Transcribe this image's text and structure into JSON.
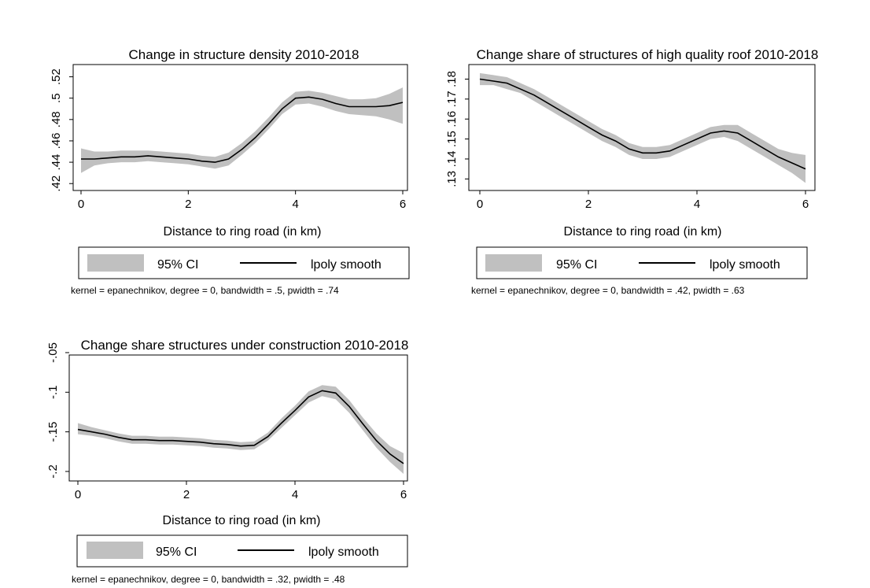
{
  "legend": {
    "ci_label": "95% CI",
    "line_label": "lpoly smooth",
    "ci_color": "#c0c0c0",
    "line_color": "#000000"
  },
  "chart_data": [
    {
      "type": "line",
      "title": "Change in structure density 2010-2018",
      "xlabel": "Distance to ring road (in km)",
      "ylabel": "",
      "xlim": [
        0,
        6
      ],
      "ylim": [
        0.415,
        0.53
      ],
      "xticks": [
        0,
        2,
        4,
        6
      ],
      "xtick_labels": [
        "0",
        "2",
        "4",
        "6"
      ],
      "yticks": [
        0.42,
        0.44,
        0.46,
        0.48,
        0.5,
        0.52
      ],
      "ytick_labels": [
        ".42",
        ".44",
        ".46",
        ".48",
        ".5",
        ".52"
      ],
      "note": "kernel = epanechnikov, degree = 0, bandwidth = .5, pwidth = .74",
      "series": [
        {
          "name": "lpoly smooth",
          "x": [
            0,
            0.25,
            0.5,
            0.75,
            1.0,
            1.25,
            1.5,
            1.75,
            2.0,
            2.25,
            2.5,
            2.75,
            3.0,
            3.25,
            3.5,
            3.75,
            4.0,
            4.25,
            4.5,
            4.75,
            5.0,
            5.25,
            5.5,
            5.75,
            6.0
          ],
          "y": [
            0.443,
            0.443,
            0.444,
            0.445,
            0.445,
            0.446,
            0.445,
            0.444,
            0.443,
            0.441,
            0.44,
            0.443,
            0.452,
            0.463,
            0.476,
            0.49,
            0.5,
            0.501,
            0.499,
            0.495,
            0.492,
            0.492,
            0.492,
            0.493,
            0.496
          ],
          "ci_lo": [
            0.43,
            0.437,
            0.439,
            0.44,
            0.44,
            0.441,
            0.44,
            0.439,
            0.438,
            0.436,
            0.434,
            0.437,
            0.447,
            0.458,
            0.471,
            0.485,
            0.494,
            0.495,
            0.492,
            0.488,
            0.485,
            0.484,
            0.483,
            0.48,
            0.476
          ],
          "ci_hi": [
            0.453,
            0.45,
            0.45,
            0.451,
            0.451,
            0.451,
            0.45,
            0.449,
            0.448,
            0.446,
            0.445,
            0.449,
            0.458,
            0.469,
            0.482,
            0.496,
            0.506,
            0.507,
            0.505,
            0.502,
            0.499,
            0.499,
            0.5,
            0.504,
            0.51
          ]
        }
      ]
    },
    {
      "type": "line",
      "title": "Change share of structures of high quality roof 2010-2018",
      "xlabel": "Distance to ring road (in km)",
      "ylabel": "",
      "xlim": [
        0,
        6
      ],
      "ylim": [
        0.125,
        0.1865
      ],
      "xticks": [
        0,
        2,
        4,
        6
      ],
      "xtick_labels": [
        "0",
        "2",
        "4",
        "6"
      ],
      "yticks": [
        0.13,
        0.14,
        0.15,
        0.16,
        0.17,
        0.18
      ],
      "ytick_labels": [
        ".13",
        ".14",
        ".15",
        ".16",
        ".17",
        ".18"
      ],
      "note": "kernel = epanechnikov, degree = 0, bandwidth = .42, pwidth = .63",
      "series": [
        {
          "name": "lpoly smooth",
          "x": [
            0,
            0.25,
            0.5,
            0.75,
            1.0,
            1.25,
            1.5,
            1.75,
            2.0,
            2.25,
            2.5,
            2.75,
            3.0,
            3.25,
            3.5,
            3.75,
            4.0,
            4.25,
            4.5,
            4.75,
            5.0,
            5.25,
            5.5,
            5.75,
            6.0
          ],
          "y": [
            0.18,
            0.179,
            0.178,
            0.175,
            0.172,
            0.168,
            0.164,
            0.16,
            0.156,
            0.152,
            0.149,
            0.145,
            0.143,
            0.143,
            0.144,
            0.147,
            0.15,
            0.153,
            0.154,
            0.153,
            0.149,
            0.145,
            0.141,
            0.138,
            0.135
          ],
          "ci_lo": [
            0.177,
            0.177,
            0.175,
            0.173,
            0.169,
            0.165,
            0.161,
            0.157,
            0.153,
            0.149,
            0.146,
            0.142,
            0.14,
            0.14,
            0.141,
            0.144,
            0.147,
            0.15,
            0.151,
            0.149,
            0.145,
            0.141,
            0.137,
            0.133,
            0.128
          ],
          "ci_hi": [
            0.183,
            0.182,
            0.181,
            0.178,
            0.175,
            0.171,
            0.167,
            0.163,
            0.159,
            0.155,
            0.152,
            0.148,
            0.146,
            0.146,
            0.147,
            0.15,
            0.153,
            0.156,
            0.157,
            0.157,
            0.153,
            0.149,
            0.145,
            0.143,
            0.142
          ]
        }
      ]
    },
    {
      "type": "line",
      "title": "Change share structures under construction 2010-2018",
      "xlabel": "Distance to ring road (in km)",
      "ylabel": "",
      "xlim": [
        0,
        6
      ],
      "ylim": [
        -0.21,
        -0.055
      ],
      "xticks": [
        0,
        2,
        4,
        6
      ],
      "xtick_labels": [
        "0",
        "2",
        "4",
        "6"
      ],
      "yticks": [
        -0.2,
        -0.15,
        -0.1,
        -0.05
      ],
      "ytick_labels": [
        "-.2",
        "-.15",
        "-.1",
        "-.05"
      ],
      "note": "kernel = epanechnikov, degree = 0, bandwidth = .32, pwidth = .48",
      "series": [
        {
          "name": "lpoly smooth",
          "x": [
            0,
            0.25,
            0.5,
            0.75,
            1.0,
            1.25,
            1.5,
            1.75,
            2.0,
            2.25,
            2.5,
            2.75,
            3.0,
            3.25,
            3.5,
            3.75,
            4.0,
            4.25,
            4.5,
            4.75,
            5.0,
            5.25,
            5.5,
            5.75,
            6.0
          ],
          "y": [
            -0.147,
            -0.15,
            -0.153,
            -0.157,
            -0.16,
            -0.16,
            -0.161,
            -0.161,
            -0.162,
            -0.163,
            -0.165,
            -0.166,
            -0.168,
            -0.167,
            -0.156,
            -0.139,
            -0.123,
            -0.106,
            -0.098,
            -0.101,
            -0.118,
            -0.14,
            -0.161,
            -0.178,
            -0.19
          ],
          "ci_lo": [
            -0.153,
            -0.155,
            -0.158,
            -0.162,
            -0.165,
            -0.165,
            -0.166,
            -0.166,
            -0.167,
            -0.168,
            -0.17,
            -0.171,
            -0.173,
            -0.172,
            -0.161,
            -0.145,
            -0.129,
            -0.113,
            -0.105,
            -0.109,
            -0.126,
            -0.148,
            -0.17,
            -0.188,
            -0.203
          ],
          "ci_hi": [
            -0.139,
            -0.144,
            -0.148,
            -0.152,
            -0.155,
            -0.155,
            -0.156,
            -0.156,
            -0.157,
            -0.158,
            -0.16,
            -0.161,
            -0.163,
            -0.162,
            -0.151,
            -0.133,
            -0.117,
            -0.099,
            -0.091,
            -0.093,
            -0.11,
            -0.132,
            -0.152,
            -0.168,
            -0.177
          ]
        }
      ]
    }
  ]
}
